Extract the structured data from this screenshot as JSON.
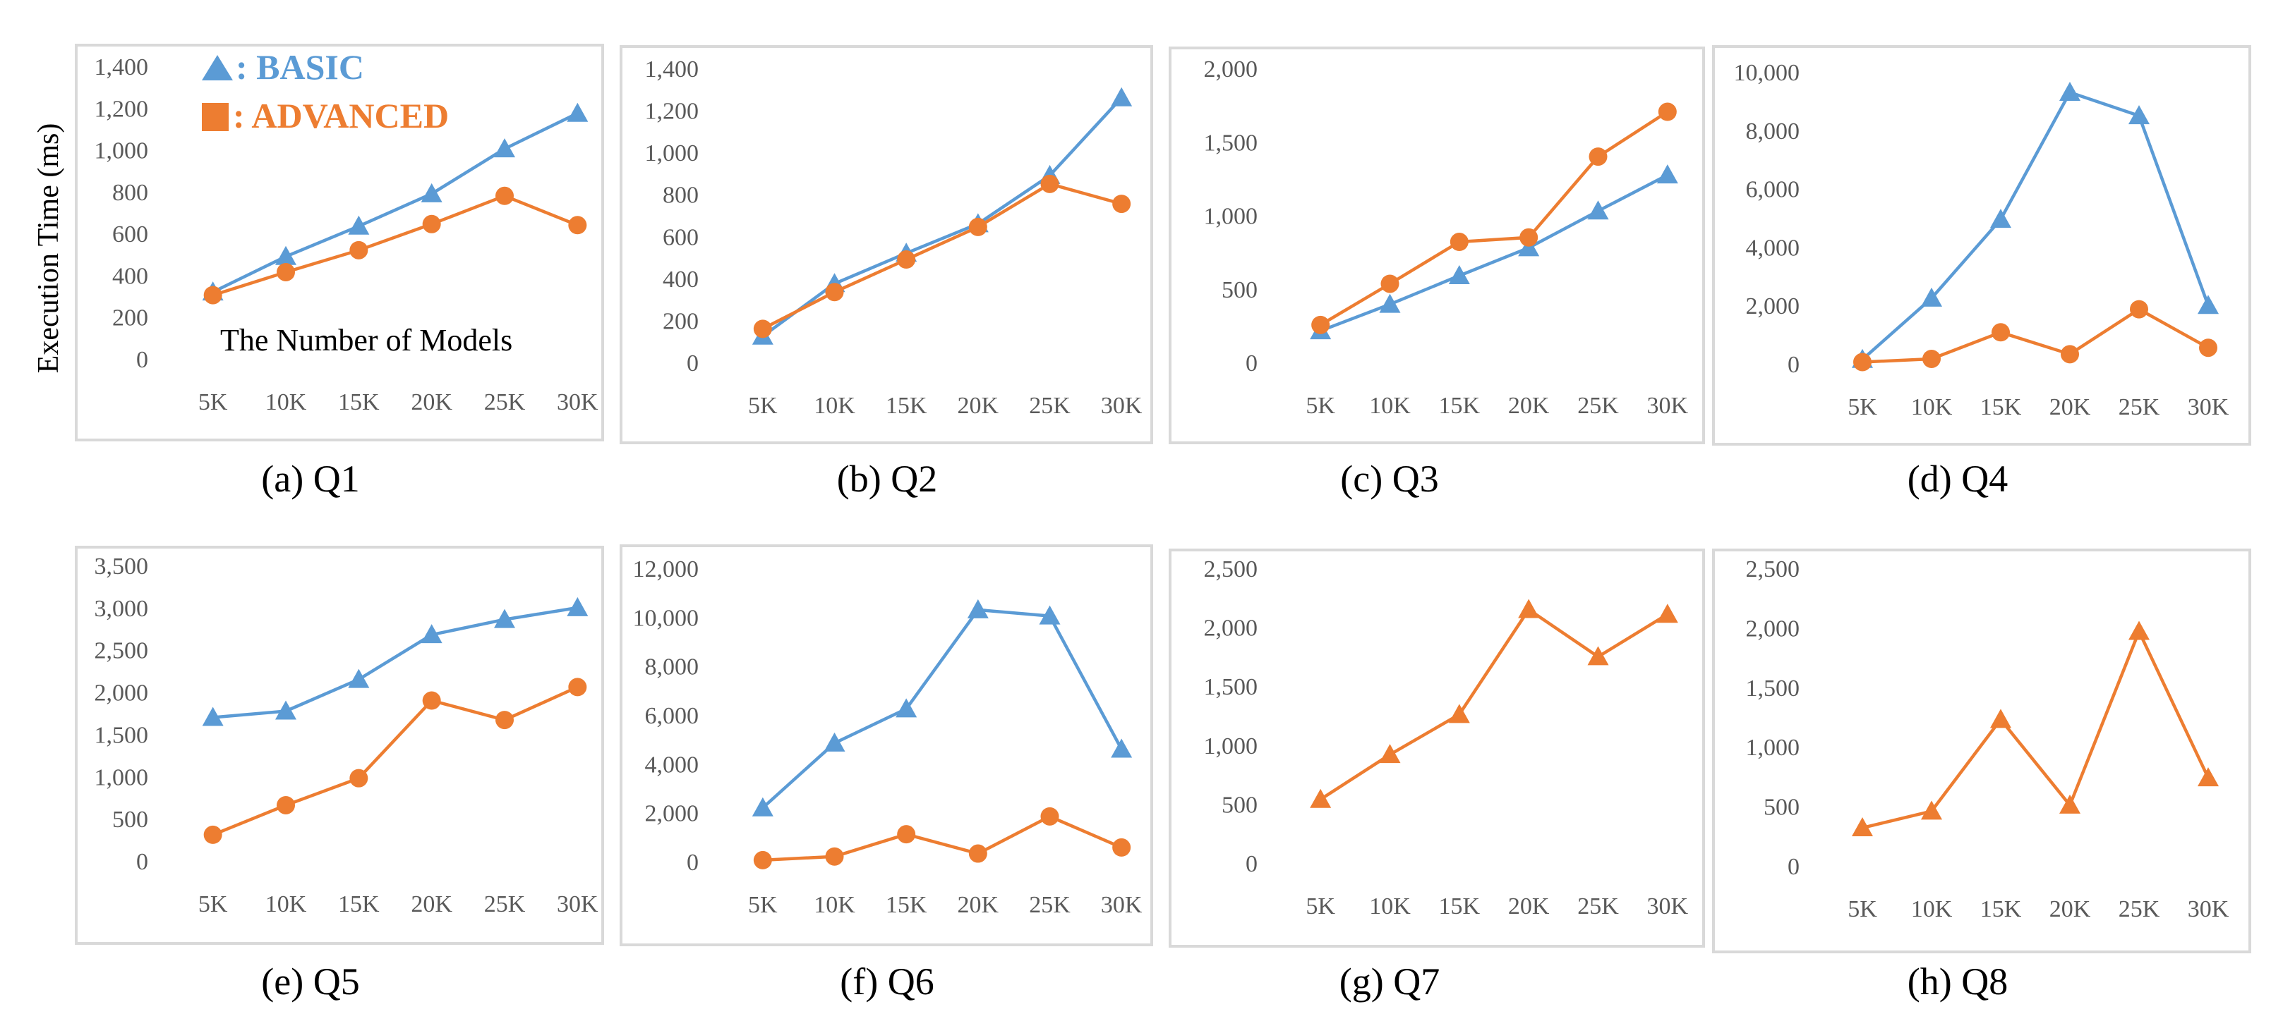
{
  "y_axis_label": "Execution Time (ms)",
  "x_axis_note": "The Number of Models",
  "legend": [
    {
      "marker": "triangle",
      "label": ": BASIC",
      "color": "#5B9BD5"
    },
    {
      "marker": "square",
      "label": ": ADVANCED",
      "color": "#ED7D31"
    }
  ],
  "colors": {
    "basic": "#5B9BD5",
    "advanced": "#ED7D31",
    "frame": "#D9D9D9"
  },
  "chart_data": [
    {
      "type": "line",
      "caption": "(a) Q1",
      "categories": [
        "5K",
        "10K",
        "15K",
        "20K",
        "25K",
        "30K"
      ],
      "ylim": [
        0,
        1400
      ],
      "yticks": [
        "0",
        "200",
        "400",
        "600",
        "800",
        "1,000",
        "1,200",
        "1,400"
      ],
      "series": [
        {
          "name": "BASIC",
          "marker": "triangle",
          "values": [
            320,
            490,
            635,
            790,
            1005,
            1175
          ]
        },
        {
          "name": "ADVANCED",
          "marker": "circle",
          "values": [
            305,
            415,
            520,
            645,
            780,
            640
          ]
        }
      ]
    },
    {
      "type": "line",
      "caption": "(b) Q2",
      "categories": [
        "5K",
        "10K",
        "15K",
        "20K",
        "25K",
        "30K"
      ],
      "ylim": [
        0,
        1400
      ],
      "yticks": [
        "0",
        "200",
        "400",
        "600",
        "800",
        "1,000",
        "1,200",
        "1,400"
      ],
      "series": [
        {
          "name": "BASIC",
          "marker": "triangle",
          "values": [
            125,
            375,
            520,
            660,
            890,
            1260
          ]
        },
        {
          "name": "ADVANCED",
          "marker": "circle",
          "values": [
            160,
            335,
            490,
            645,
            850,
            755
          ]
        }
      ]
    },
    {
      "type": "line",
      "caption": "(c) Q3",
      "categories": [
        "5K",
        "10K",
        "15K",
        "20K",
        "25K",
        "30K"
      ],
      "ylim": [
        0,
        2000
      ],
      "yticks": [
        "0",
        "500",
        "1,000",
        "1,500",
        "2,000"
      ],
      "series": [
        {
          "name": "BASIC",
          "marker": "triangle",
          "values": [
            215,
            395,
            590,
            780,
            1030,
            1275
          ]
        },
        {
          "name": "ADVANCED",
          "marker": "circle",
          "values": [
            255,
            535,
            820,
            850,
            1400,
            1705
          ]
        }
      ]
    },
    {
      "type": "line",
      "caption": "(d) Q4",
      "categories": [
        "5K",
        "10K",
        "15K",
        "20K",
        "25K",
        "30K"
      ],
      "ylim": [
        0,
        10000
      ],
      "yticks": [
        "0",
        "2,000",
        "4,000",
        "6,000",
        "8,000",
        "10,000"
      ],
      "series": [
        {
          "name": "BASIC",
          "marker": "triangle",
          "values": [
            150,
            2250,
            4950,
            9300,
            8500,
            2000
          ]
        },
        {
          "name": "ADVANCED",
          "marker": "circle",
          "values": [
            60,
            170,
            1080,
            330,
            1870,
            550
          ]
        }
      ]
    },
    {
      "type": "line",
      "caption": "(e) Q5",
      "categories": [
        "5K",
        "10K",
        "15K",
        "20K",
        "25K",
        "30K"
      ],
      "ylim": [
        0,
        3500
      ],
      "yticks": [
        "0",
        "500",
        "1,000",
        "1,500",
        "2,000",
        "2,500",
        "3,000",
        "3,500"
      ],
      "series": [
        {
          "name": "BASIC",
          "marker": "triangle",
          "values": [
            1700,
            1775,
            2150,
            2680,
            2860,
            3000
          ]
        },
        {
          "name": "ADVANCED",
          "marker": "circle",
          "values": [
            310,
            660,
            980,
            1900,
            1670,
            2060
          ]
        }
      ]
    },
    {
      "type": "line",
      "caption": "(f) Q6",
      "categories": [
        "5K",
        "10K",
        "15K",
        "20K",
        "25K",
        "30K"
      ],
      "ylim": [
        0,
        12000
      ],
      "yticks": [
        "0",
        "2,000",
        "4,000",
        "6,000",
        "8,000",
        "10,000",
        "12,000"
      ],
      "series": [
        {
          "name": "BASIC",
          "marker": "triangle",
          "values": [
            2200,
            4850,
            6250,
            10300,
            10050,
            4600
          ]
        },
        {
          "name": "ADVANCED",
          "marker": "circle",
          "values": [
            60,
            210,
            1120,
            330,
            1850,
            580
          ]
        }
      ]
    },
    {
      "type": "line",
      "caption": "(g) Q7",
      "categories": [
        "5K",
        "10K",
        "15K",
        "20K",
        "25K",
        "30K"
      ],
      "ylim": [
        0,
        2500
      ],
      "yticks": [
        "0",
        "500",
        "1,000",
        "1,500",
        "2,000",
        "2,500"
      ],
      "series": [
        {
          "name": "ADVANCED",
          "marker": "triangle",
          "values": [
            540,
            920,
            1260,
            2150,
            1750,
            2110
          ]
        }
      ]
    },
    {
      "type": "line",
      "caption": "(h) Q8",
      "categories": [
        "5K",
        "10K",
        "15K",
        "20K",
        "25K",
        "30K"
      ],
      "ylim": [
        0,
        2500
      ],
      "yticks": [
        "0",
        "500",
        "1,000",
        "1,500",
        "2,000",
        "2,500"
      ],
      "series": [
        {
          "name": "ADVANCED",
          "marker": "triangle",
          "values": [
            320,
            460,
            1230,
            510,
            1970,
            740
          ]
        }
      ]
    }
  ]
}
